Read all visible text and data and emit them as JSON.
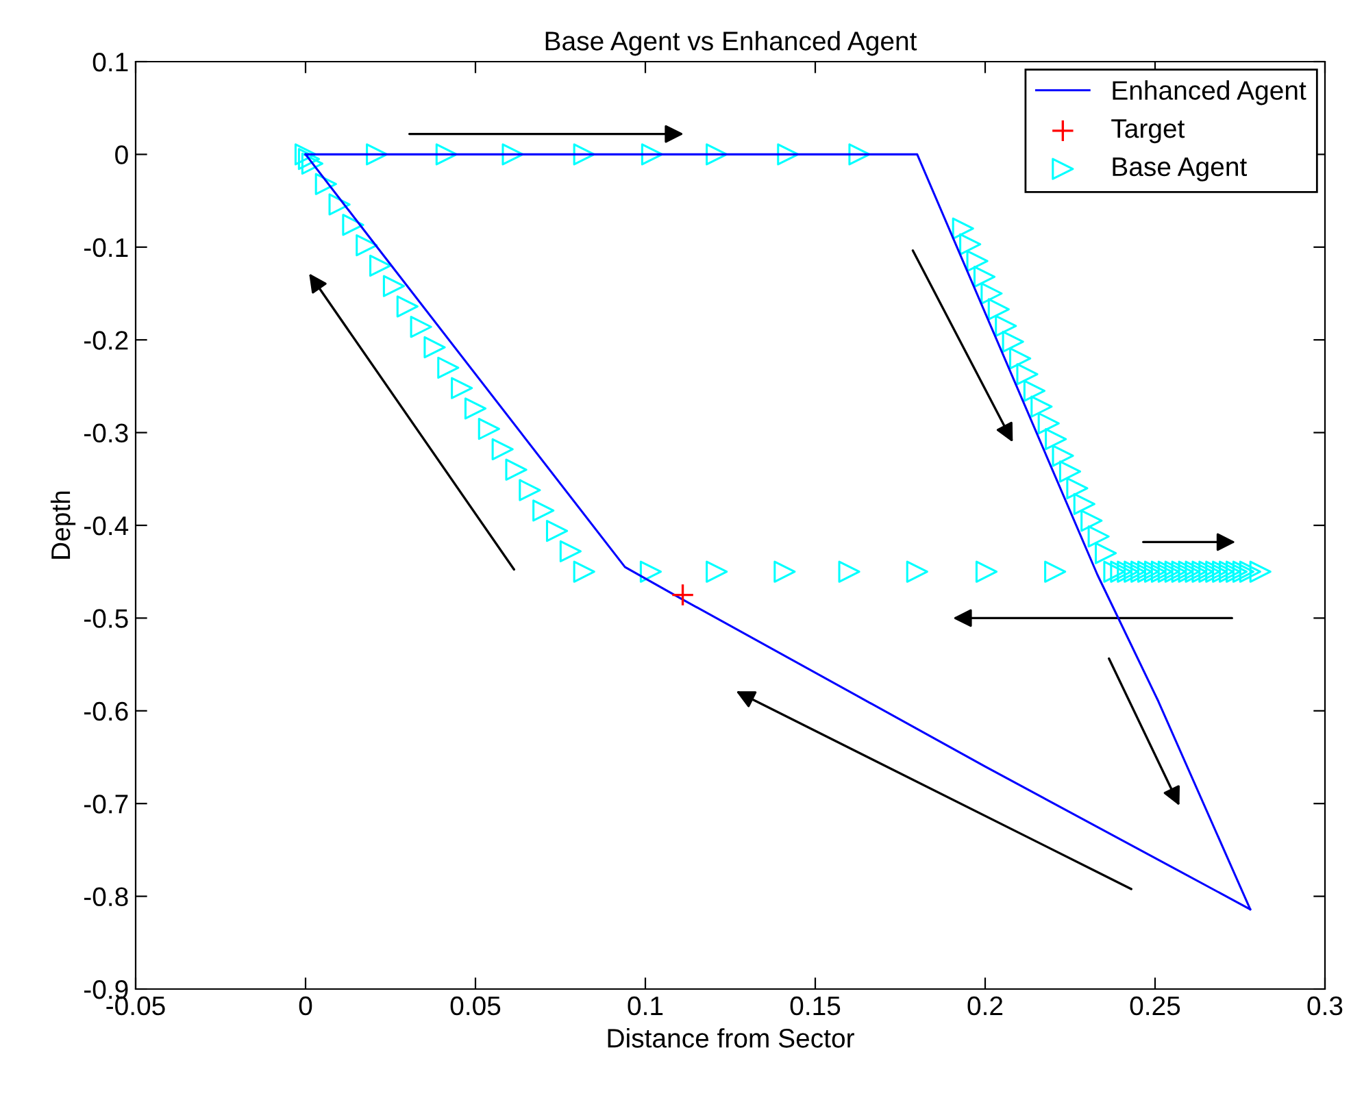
{
  "chart_data": {
    "type": "line",
    "title": "Base Agent vs Enhanced Agent",
    "xlabel": "Distance from Sector",
    "ylabel": "Depth",
    "xlim": [
      -0.05,
      0.3
    ],
    "xticks": [
      -0.05,
      0,
      0.05,
      0.1,
      0.15,
      0.2,
      0.25,
      0.3
    ],
    "ylim": [
      -0.9,
      0.1
    ],
    "yticks": [
      -0.9,
      -0.8,
      -0.7,
      -0.6,
      -0.5,
      -0.4,
      -0.3,
      -0.2,
      -0.1,
      0,
      0.1
    ],
    "grid": false,
    "legend": "top right",
    "series": [
      {
        "name": "Enhanced Agent",
        "marker": "none",
        "line_style": "solid",
        "color": "#0000ff",
        "x": [
          0,
          0.18,
          0.233,
          0.251,
          0.278
        ],
        "values": [
          0,
          0,
          -0.453,
          -0.59,
          -0.814
        ]
      },
      {
        "marker": "none",
        "line_style": "solid",
        "color": "#0000ff",
        "x": [
          0,
          0.02,
          0.094,
          0.111,
          0.2,
          0.278
        ],
        "values": [
          0,
          -0.095,
          -0.445,
          -0.48,
          -0.66,
          -0.814
        ]
      },
      {
        "name": "Target",
        "type": "scatter",
        "marker": "cross",
        "color": "#ff0000",
        "x": [
          0.111
        ],
        "values": [
          -0.475
        ]
      },
      {
        "name": "Base Agent",
        "type": "scatter",
        "marker": "triangle",
        "color": "#00ffff",
        "x": [
          0,
          0.001,
          0.021,
          0.0415,
          0.061,
          0.082,
          0.102,
          0.121,
          0.142,
          0.163,
          0.1935,
          0.1956,
          0.1977,
          0.1998,
          0.2019,
          0.204,
          0.2061,
          0.2082,
          0.2103,
          0.2124,
          0.2145,
          0.2166,
          0.2187,
          0.2208,
          0.2229,
          0.225,
          0.2271,
          0.2292,
          0.2313,
          0.2334,
          0.2355,
          0.238,
          0.24,
          0.242,
          0.244,
          0.246,
          0.248,
          0.25,
          0.252,
          0.254,
          0.256,
          0.258,
          0.26,
          0.262,
          0.264,
          0.266,
          0.268,
          0.27,
          0.272,
          0.274,
          0.276,
          0.278,
          0.281,
          0.2206,
          0.2004,
          0.18,
          0.16,
          0.141,
          0.121,
          0.1016,
          0.082,
          0.078,
          0.074,
          0.07,
          0.066,
          0.062,
          0.058,
          0.054,
          0.05,
          0.046,
          0.042,
          0.038,
          0.034,
          0.03,
          0.026,
          0.022,
          0.018,
          0.014,
          0.01,
          0.006,
          0.002
        ],
        "values": [
          0,
          -0.005,
          0,
          0,
          0,
          0,
          0,
          0,
          0,
          0,
          -0.08,
          -0.097,
          -0.115,
          -0.132,
          -0.15,
          -0.167,
          -0.185,
          -0.202,
          -0.22,
          -0.237,
          -0.255,
          -0.272,
          -0.29,
          -0.307,
          -0.325,
          -0.342,
          -0.36,
          -0.377,
          -0.395,
          -0.412,
          -0.43,
          -0.45,
          -0.45,
          -0.45,
          -0.45,
          -0.45,
          -0.45,
          -0.45,
          -0.45,
          -0.45,
          -0.45,
          -0.45,
          -0.45,
          -0.45,
          -0.45,
          -0.45,
          -0.45,
          -0.45,
          -0.45,
          -0.45,
          -0.45,
          -0.45,
          -0.45,
          -0.45,
          -0.45,
          -0.45,
          -0.45,
          -0.45,
          -0.45,
          -0.45,
          -0.45,
          -0.428,
          -0.406,
          -0.384,
          -0.362,
          -0.34,
          -0.318,
          -0.296,
          -0.274,
          -0.252,
          -0.23,
          -0.208,
          -0.186,
          -0.164,
          -0.142,
          -0.12,
          -0.098,
          -0.076,
          -0.054,
          -0.032,
          -0.01
        ]
      }
    ]
  }
}
